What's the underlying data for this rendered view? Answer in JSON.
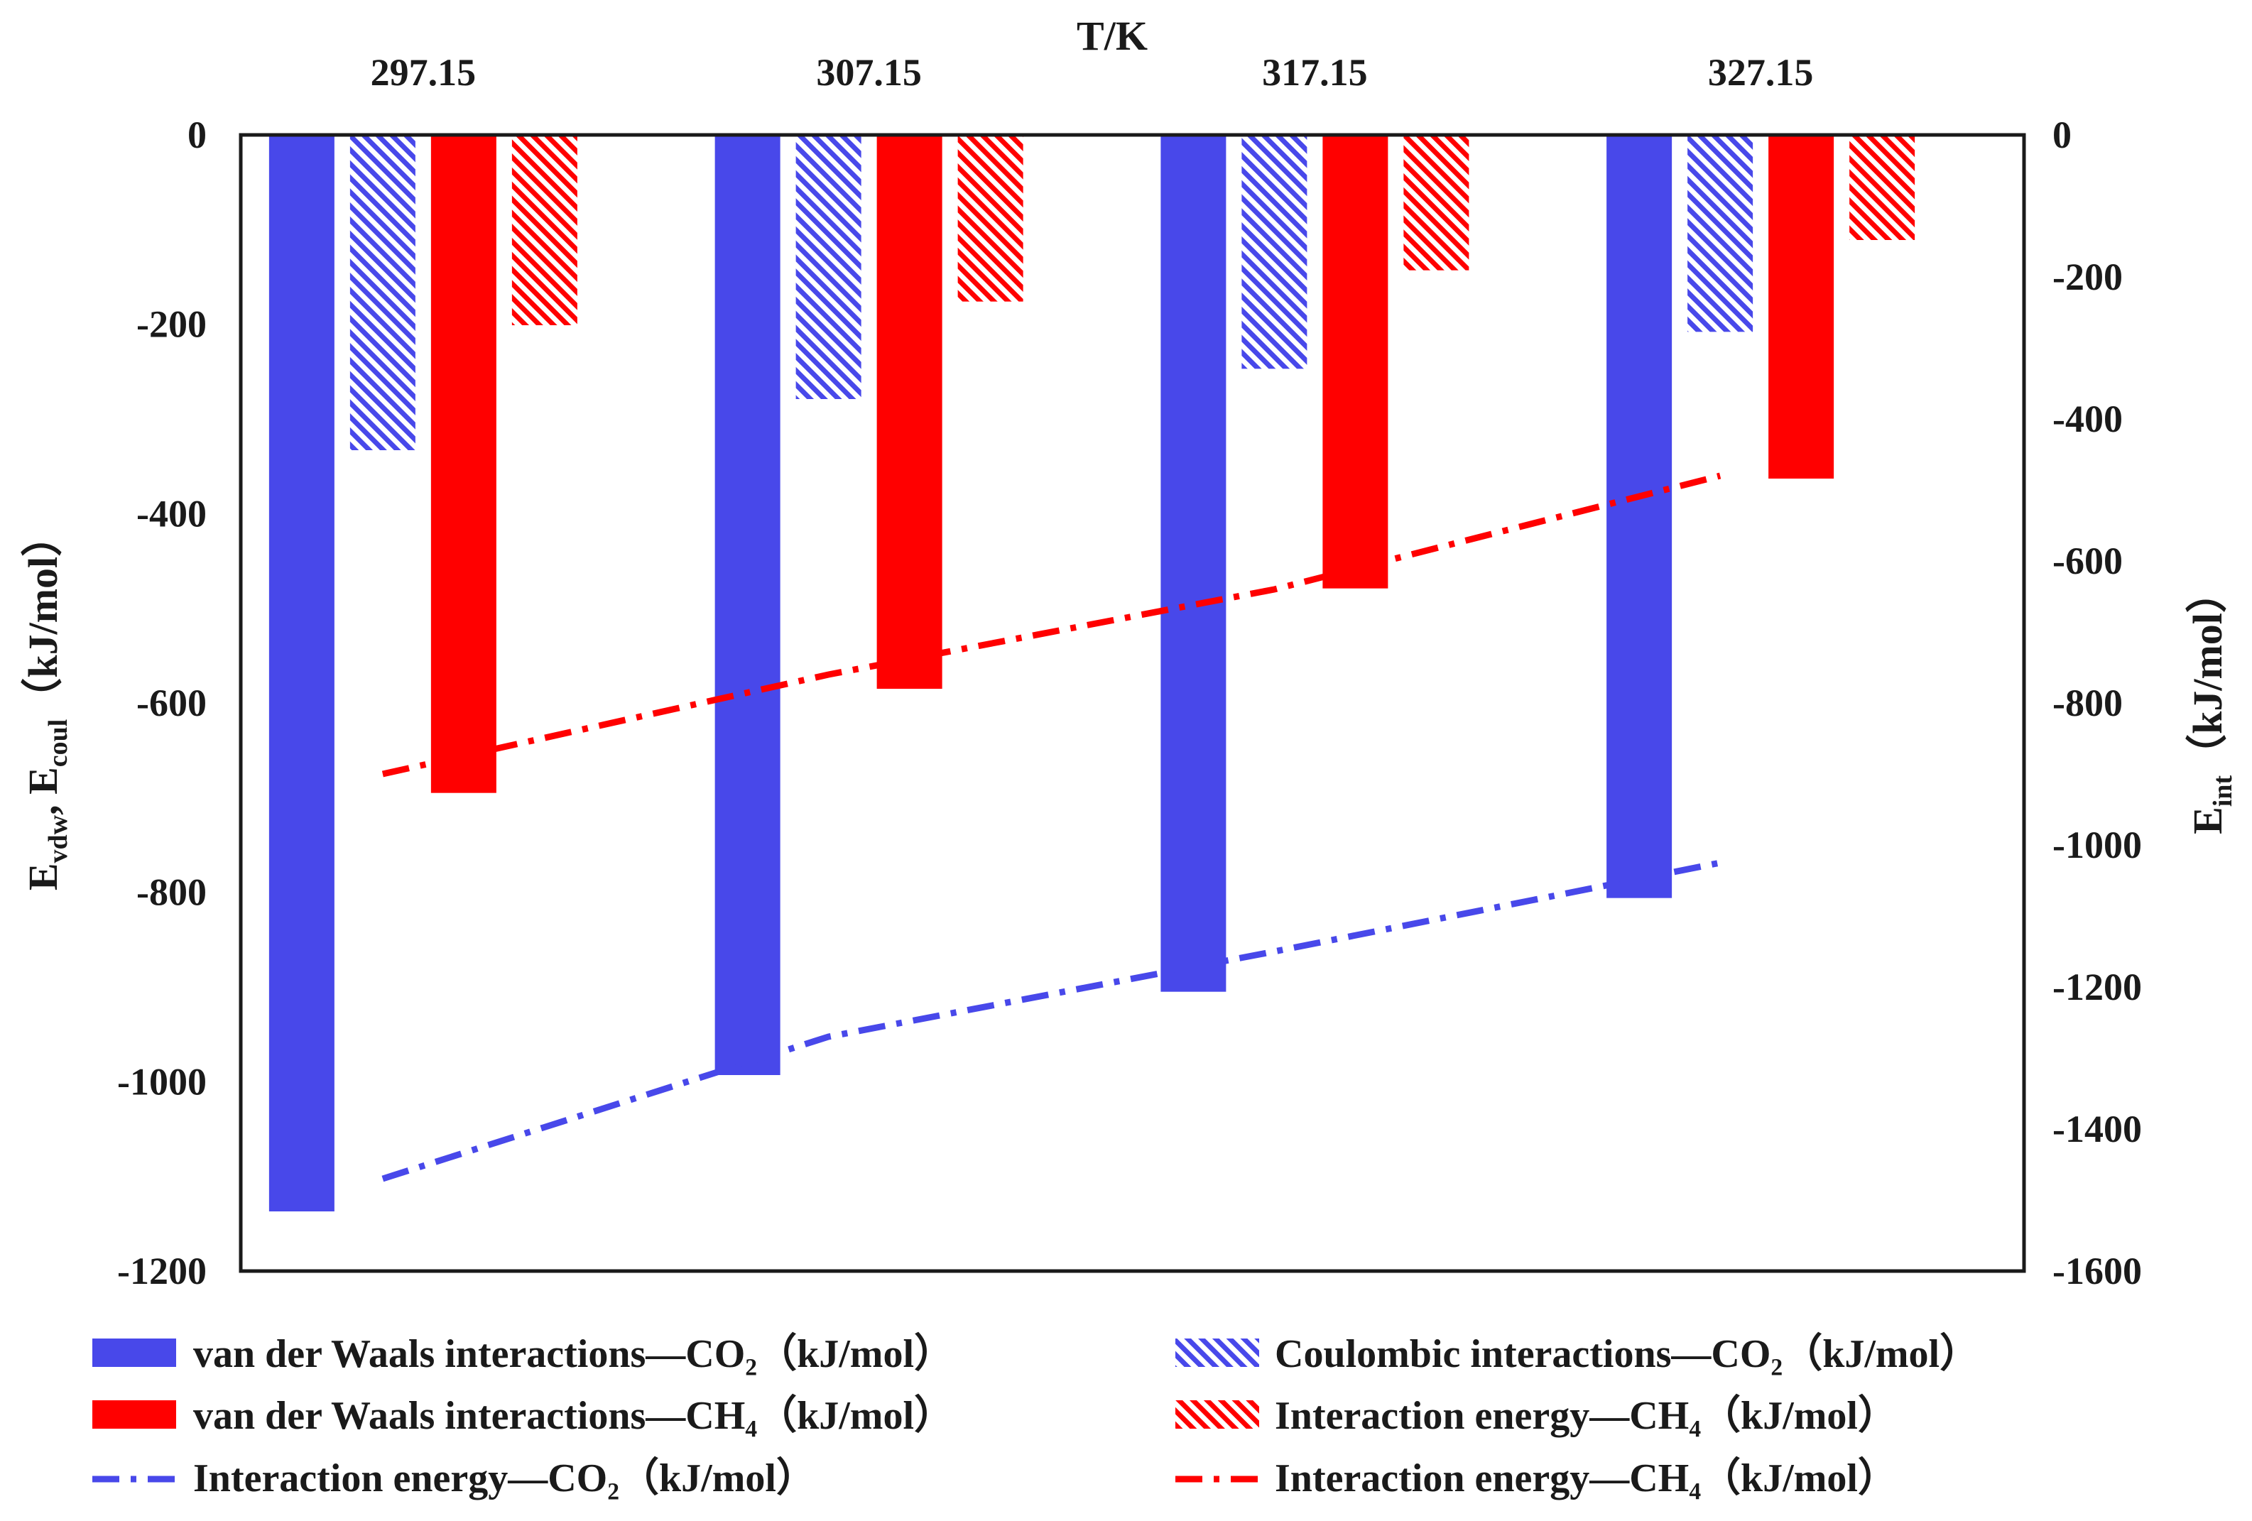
{
  "chart_data": {
    "type": "bar",
    "xlabel": "T/K",
    "categories": [
      "297.15",
      "307.15",
      "317.15",
      "327.15"
    ],
    "y_left": {
      "label_main": "E",
      "label_sub1": "vdw",
      "label_sep": ", E",
      "label_sub2": "coul",
      "label_unit": "（kJ/mol）",
      "ylim": [
        -1200,
        0
      ],
      "ticks": [
        "0",
        "-200",
        "-400",
        "-600",
        "-800",
        "-1000",
        "-1200"
      ],
      "tick_values": [
        0,
        -200,
        -400,
        -600,
        -800,
        -1000,
        -1200
      ]
    },
    "y_right": {
      "label_main": "E",
      "label_sub": "int",
      "label_unit": "（kJ/mol）",
      "ylim": [
        -1600,
        0
      ],
      "ticks": [
        "0",
        "-200",
        "-400",
        "-600",
        "-800",
        "-1000",
        "-1200",
        "-1400",
        "-1600"
      ],
      "tick_values": [
        0,
        -200,
        -400,
        -600,
        -800,
        -1000,
        -1200,
        -1400,
        -1600
      ]
    },
    "bar_series": [
      {
        "name": "van der Waals interactions—CO₂（kJ/mol）",
        "values": [
          -1137,
          -993,
          -905,
          -806
        ],
        "color": "#4848ea",
        "pattern": "solid"
      },
      {
        "name": "Coulombic interactions—CO₂（kJ/mol）",
        "values": [
          -333,
          -279,
          -247,
          -208
        ],
        "color": "#4848ea",
        "pattern": "hatch"
      },
      {
        "name": "van der Waals interactions—CH₄（kJ/mol）",
        "values": [
          -695,
          -585,
          -479,
          -363
        ],
        "color": "#ff0000",
        "pattern": "solid"
      },
      {
        "name": "Interaction energy—CH₄（kJ/mol）",
        "values": [
          -201,
          -176,
          -143,
          -111
        ],
        "color": "#ff0000",
        "pattern": "hatch"
      }
    ],
    "line_series": [
      {
        "name": "Interaction energy—CO₂（kJ/mol）",
        "axis": "right",
        "values": [
          -1470,
          -1270,
          -1150,
          -1025
        ],
        "color": "#4848ea",
        "style": "dash-dot"
      },
      {
        "name": "Interaction energy—CH₄（kJ/mol）",
        "axis": "right",
        "values": [
          -900,
          -760,
          -640,
          -480
        ],
        "color": "#ff0000",
        "style": "dash-dot"
      }
    ],
    "legend_position": "bottom"
  },
  "colors": {
    "blue": "#4848ea",
    "red": "#ff0000",
    "axis": "#1a1a1a"
  }
}
